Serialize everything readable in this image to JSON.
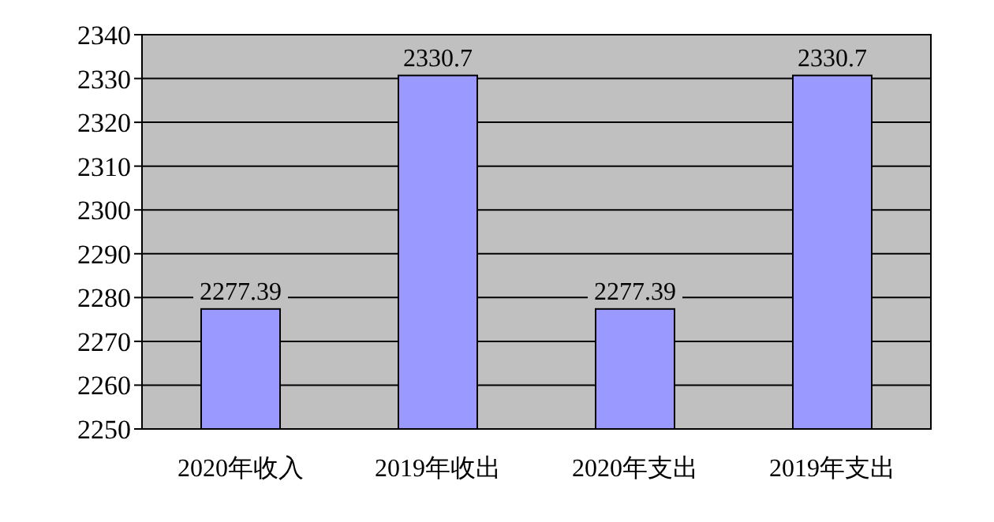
{
  "chart_data": {
    "type": "bar",
    "categories": [
      "2020年收入",
      "2019年收出",
      "2020年支出",
      "2019年支出"
    ],
    "values": [
      2277.39,
      2330.7,
      2277.39,
      2330.7
    ],
    "color": "#9999ff",
    "ylim": [
      2250,
      2340
    ],
    "yticks": [
      2250,
      2260,
      2270,
      2280,
      2290,
      2300,
      2310,
      2320,
      2330,
      2340
    ],
    "grid": "y",
    "data_labels": true
  }
}
